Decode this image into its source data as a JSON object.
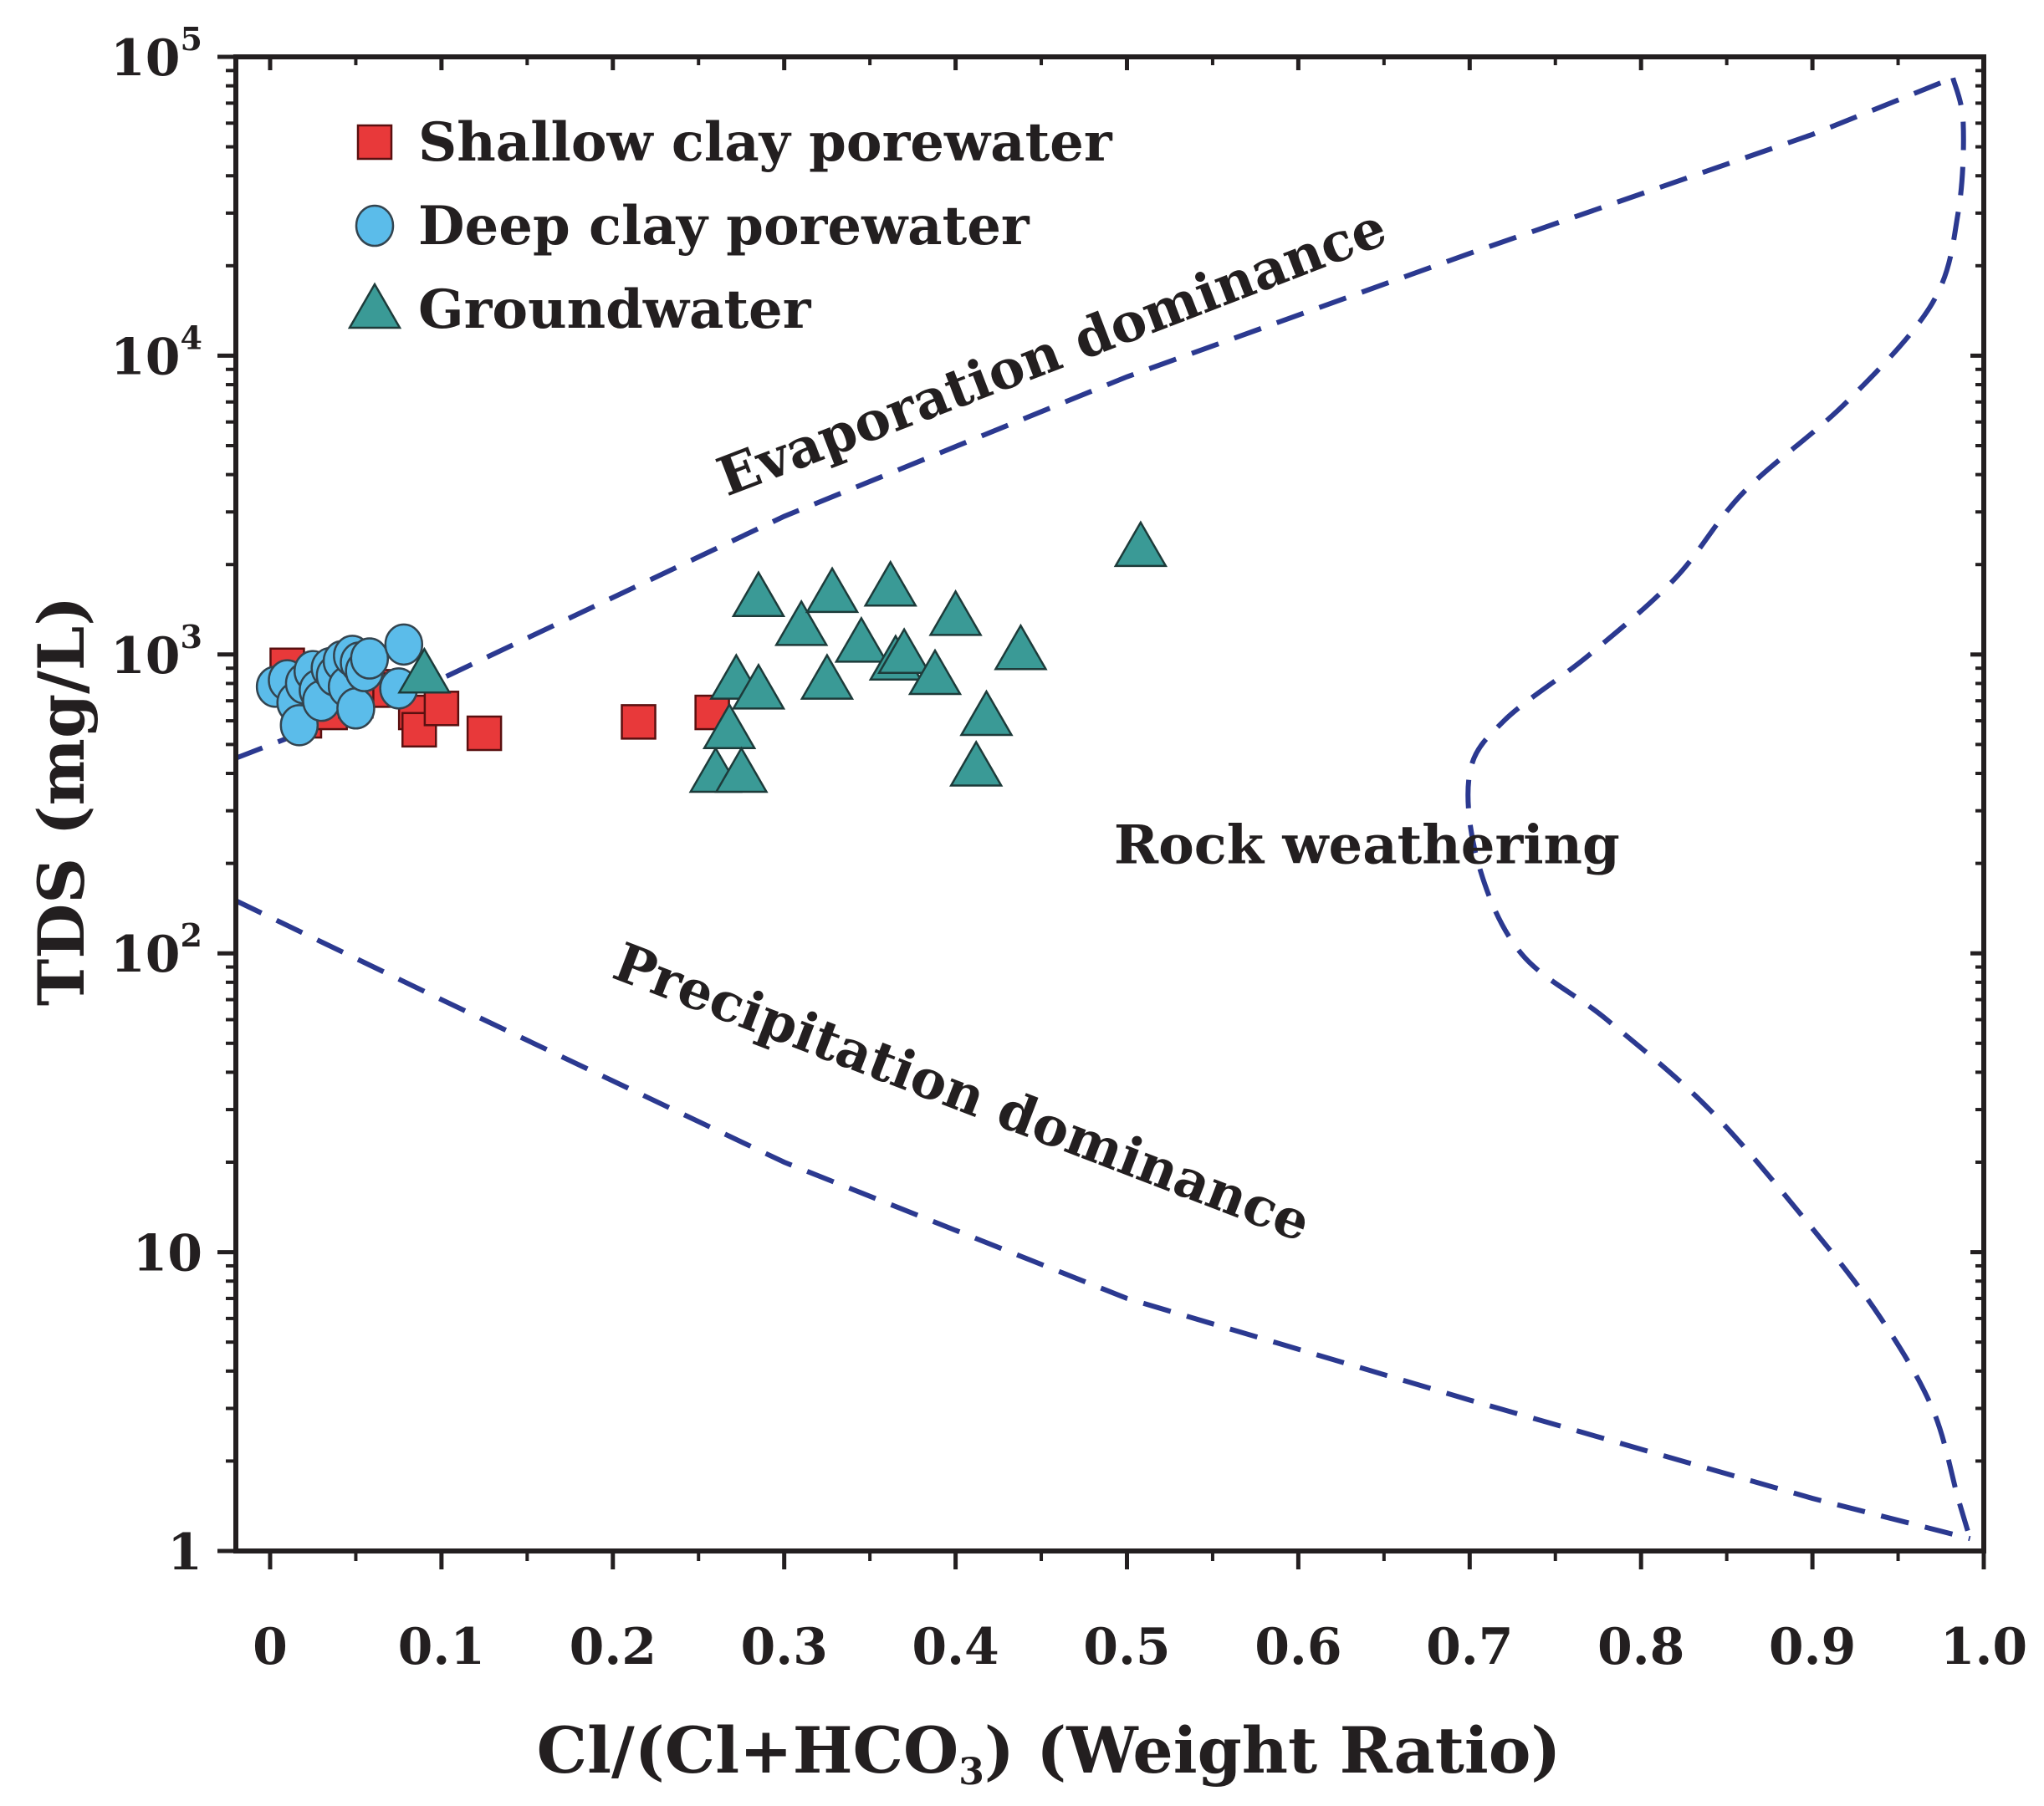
{
  "chart_data": {
    "type": "scatter",
    "title": "",
    "xlabel": "Cl/(Cl+HCO",
    "xlabel_sub": "3",
    "xlabel_end": ") (Weight Ratio)",
    "ylabel": "TDS (mg/L)",
    "xlim": [
      -0.02,
      1.0
    ],
    "ylim": [
      1,
      100000
    ],
    "yscale": "log",
    "x_ticks": [
      0,
      0.1,
      0.2,
      0.3,
      0.4,
      0.5,
      0.6,
      0.7,
      0.8,
      0.9,
      1.0
    ],
    "x_tick_labels": [
      "0",
      "0.1",
      "0.2",
      "0.3",
      "0.4",
      "0.5",
      "0.6",
      "0.7",
      "0.8",
      "0.9",
      "1.0"
    ],
    "y_ticks": [
      {
        "value": 1,
        "base": "1",
        "exp": ""
      },
      {
        "value": 10,
        "base": "10",
        "exp": ""
      },
      {
        "value": 100,
        "base": "10",
        "exp": "2"
      },
      {
        "value": 1000,
        "base": "10",
        "exp": "3"
      },
      {
        "value": 10000,
        "base": "10",
        "exp": "4"
      },
      {
        "value": 100000,
        "base": "10",
        "exp": "5"
      }
    ],
    "legend_position": "top-left",
    "series": [
      {
        "name": "Shallow clay porewater",
        "marker": "square",
        "color": "#e8393a",
        "points": [
          [
            0.01,
            920
          ],
          [
            0.015,
            800
          ],
          [
            0.02,
            600
          ],
          [
            0.025,
            700
          ],
          [
            0.03,
            850
          ],
          [
            0.035,
            640
          ],
          [
            0.04,
            820
          ],
          [
            0.05,
            700
          ],
          [
            0.06,
            780
          ],
          [
            0.07,
            760
          ],
          [
            0.085,
            640
          ],
          [
            0.087,
            560
          ],
          [
            0.1,
            660
          ],
          [
            0.125,
            545
          ],
          [
            0.215,
            595
          ],
          [
            0.258,
            640
          ]
        ]
      },
      {
        "name": "Deep clay porewater",
        "marker": "circle",
        "color": "#5bbcea",
        "points": [
          [
            0.003,
            780
          ],
          [
            0.01,
            820
          ],
          [
            0.015,
            690
          ],
          [
            0.017,
            580
          ],
          [
            0.02,
            800
          ],
          [
            0.025,
            880
          ],
          [
            0.028,
            760
          ],
          [
            0.03,
            700
          ],
          [
            0.035,
            900
          ],
          [
            0.038,
            850
          ],
          [
            0.042,
            950
          ],
          [
            0.045,
            780
          ],
          [
            0.048,
            990
          ],
          [
            0.05,
            660
          ],
          [
            0.052,
            940
          ],
          [
            0.055,
            880
          ],
          [
            0.058,
            970
          ],
          [
            0.075,
            770
          ],
          [
            0.078,
            1080
          ]
        ]
      },
      {
        "name": "Groundwater",
        "marker": "triangle",
        "color": "#3a9a96",
        "points": [
          [
            0.09,
            860
          ],
          [
            0.26,
            400
          ],
          [
            0.268,
            560
          ],
          [
            0.272,
            820
          ],
          [
            0.275,
            400
          ],
          [
            0.285,
            760
          ],
          [
            0.285,
            1550
          ],
          [
            0.31,
            1240
          ],
          [
            0.325,
            820
          ],
          [
            0.328,
            1600
          ],
          [
            0.345,
            1090
          ],
          [
            0.362,
            1680
          ],
          [
            0.365,
            950
          ],
          [
            0.37,
            1000
          ],
          [
            0.388,
            850
          ],
          [
            0.4,
            1340
          ],
          [
            0.412,
            420
          ],
          [
            0.418,
            620
          ],
          [
            0.438,
            1030
          ],
          [
            0.508,
            2280
          ]
        ]
      }
    ],
    "boundaries": [
      {
        "name": "upper",
        "points": [
          [
            -0.02,
            450
          ],
          [
            0.1,
            830
          ],
          [
            0.3,
            2900
          ],
          [
            0.5,
            8500
          ],
          [
            0.7,
            22000
          ],
          [
            0.9,
            55000
          ],
          [
            0.982,
            85000
          ]
        ]
      },
      {
        "name": "right",
        "points": [
          [
            0.982,
            85000
          ],
          [
            0.988,
            60000
          ],
          [
            0.985,
            30000
          ],
          [
            0.97,
            15000
          ],
          [
            0.92,
            7000
          ],
          [
            0.86,
            3500
          ],
          [
            0.82,
            1800
          ],
          [
            0.77,
            1000
          ],
          [
            0.72,
            600
          ],
          [
            0.7,
            400
          ],
          [
            0.705,
            200
          ],
          [
            0.73,
            100
          ],
          [
            0.78,
            60
          ],
          [
            0.84,
            30
          ],
          [
            0.9,
            12
          ],
          [
            0.94,
            6
          ],
          [
            0.97,
            3
          ],
          [
            0.985,
            1.5
          ],
          [
            0.992,
            1.1
          ]
        ]
      },
      {
        "name": "lower",
        "points": [
          [
            -0.02,
            150
          ],
          [
            0.1,
            70
          ],
          [
            0.3,
            20
          ],
          [
            0.5,
            7
          ],
          [
            0.7,
            3.2
          ],
          [
            0.9,
            1.5
          ],
          [
            0.992,
            1.1
          ]
        ]
      }
    ],
    "annotations": [
      {
        "text": "Evaporation dominance",
        "x": 0.46,
        "y": 9000,
        "angle": -21
      },
      {
        "text": "Rock weathering",
        "x": 0.64,
        "y": 200,
        "angle": 0
      },
      {
        "text": "Precipitation dominance",
        "x": 0.4,
        "y": 30,
        "angle": 21
      }
    ]
  },
  "colors": {
    "axis": "#231f20",
    "boundary": "#2b3990",
    "shallow": "#e8393a",
    "deep": "#5bbcea",
    "ground": "#3a9a96"
  }
}
